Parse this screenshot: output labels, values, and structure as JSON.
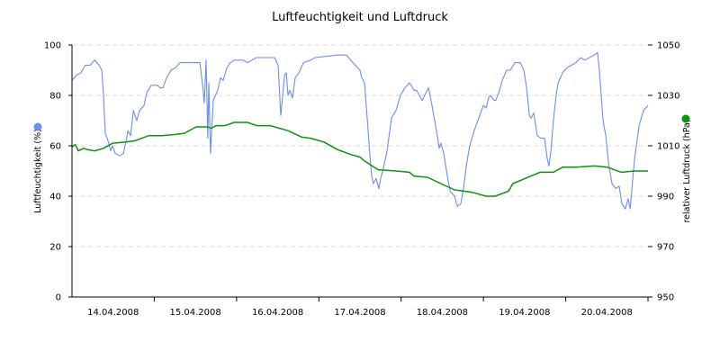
{
  "chart_data": {
    "type": "line",
    "title": "Luftfeuchtigkeit und Luftdruck",
    "x_unit": "hours since 14.04.2008 00:00",
    "xlim": [
      0,
      168
    ],
    "x_tick_labels": [
      "14.04.2008",
      "15.04.2008",
      "16.04.2008",
      "17.04.2008",
      "18.04.2008",
      "19.04.2008",
      "20.04.2008"
    ],
    "grid": true,
    "left_axis": {
      "label": "Luftfeuchtigkeit (%)",
      "ylim": [
        0,
        100
      ],
      "ticks": [
        "0",
        "20",
        "40",
        "60",
        "80",
        "100"
      ],
      "color": "#6b8ef0"
    },
    "right_axis": {
      "label": "relativer Luftdruck (hPa)",
      "ylim": [
        950,
        1050
      ],
      "ticks": [
        "950",
        "970",
        "990",
        "1010",
        "1030",
        "1050"
      ],
      "color": "#119011"
    },
    "series": [
      {
        "name": "Luftfeuchtigkeit (%)",
        "axis": "left",
        "color": "#6b8ef0",
        "x": [
          0,
          1.3,
          2.6,
          3.9,
          5.3,
          6.6,
          7.9,
          8.7,
          9.2,
          9.7,
          10.5,
          11.3,
          11.8,
          12.6,
          13.9,
          15.0,
          15.8,
          16.3,
          17.1,
          17.9,
          18.9,
          19.7,
          21.0,
          21.8,
          23.1,
          24.9,
          25.7,
          26.5,
          27.6,
          28.9,
          30.2,
          31.5,
          35.4,
          37.3,
          38.1,
          38.6,
          39.1,
          39.6,
          39.9,
          40.4,
          41.2,
          42.5,
          43.3,
          44.1,
          45.2,
          46.2,
          47.3,
          49.9,
          51.2,
          52.5,
          53.8,
          59.1,
          60.1,
          60.9,
          62.0,
          62.5,
          63.0,
          63.5,
          64.3,
          65.1,
          66.2,
          67.5,
          69.6,
          70.9,
          77.4,
          80.1,
          81.9,
          84.0,
          84.5,
          85.3,
          86.1,
          86.9,
          87.4,
          87.9,
          88.7,
          89.5,
          90.0,
          90.8,
          91.9,
          93.2,
          94.5,
          95.8,
          97.1,
          98.4,
          99.8,
          100.5,
          102.1,
          104.0,
          105.0,
          106.3,
          107.1,
          107.6,
          108.4,
          109.5,
          110.3,
          111.6,
          112.4,
          113.4,
          114.2,
          115.0,
          116.0,
          117.3,
          118.9,
          120.0,
          120.8,
          121.5,
          122.1,
          123.1,
          123.6,
          124.7,
          125.5,
          126.8,
          127.8,
          129.2,
          130.7,
          131.8,
          132.6,
          133.4,
          133.9,
          134.7,
          135.7,
          136.8,
          137.8,
          138.6,
          139.1,
          139.7,
          140.4,
          141.2,
          141.8,
          143.1,
          144.4,
          147.0,
          148.3,
          149.6,
          150.9,
          152.3,
          153.3,
          153.8,
          154.9,
          155.7,
          156.5,
          157.5,
          158.6,
          159.6,
          160.4,
          161.4,
          162.2,
          162.8,
          164.1,
          165.4,
          166.7,
          168.0
        ],
        "y": [
          86,
          88,
          89,
          92,
          92,
          94,
          92,
          90,
          80,
          65,
          62,
          58,
          60,
          57,
          56,
          57,
          62,
          66,
          64,
          74,
          70,
          74,
          76,
          81,
          84,
          84,
          83,
          83,
          87,
          90,
          91,
          93,
          93,
          93,
          84,
          77,
          94,
          63,
          85,
          57,
          78,
          82,
          87,
          86,
          91,
          93,
          94,
          94,
          93,
          94,
          95,
          95,
          92,
          72,
          88,
          89,
          80,
          82,
          79,
          87,
          89,
          93,
          94,
          95,
          96,
          96,
          93,
          90,
          87,
          85,
          71,
          56,
          48,
          45,
          47,
          43,
          47,
          51,
          58,
          71,
          74,
          80,
          83,
          85,
          82,
          82,
          78,
          83,
          76,
          66,
          59,
          61,
          57,
          48,
          42,
          40,
          36,
          37,
          43,
          52,
          60,
          66,
          72,
          76,
          75,
          79,
          80,
          78,
          78,
          82,
          86,
          90,
          90,
          93,
          93,
          90,
          83,
          72,
          71,
          73,
          64,
          63,
          63,
          55,
          52,
          58,
          70,
          80,
          85,
          89,
          91,
          93,
          95,
          94,
          95,
          96,
          97,
          90,
          70,
          64,
          53,
          45,
          43,
          44,
          37,
          35,
          39,
          35,
          55,
          68,
          74,
          76
        ]
      },
      {
        "name": "relativer Luftdruck (hPa)",
        "axis": "right",
        "color": "#119011",
        "x": [
          0,
          1.0,
          1.8,
          3.4,
          4.5,
          6.6,
          9.2,
          11.8,
          15.8,
          18.4,
          22.3,
          26.3,
          30.2,
          32.8,
          36.2,
          39.4,
          40.7,
          42.0,
          44.6,
          47.3,
          51.2,
          53.8,
          57.8,
          63.0,
          66.9,
          69.6,
          73.5,
          77.4,
          81.4,
          84.0,
          85.3,
          89.3,
          94.5,
          98.4,
          99.8,
          103.7,
          107.6,
          111.6,
          116.8,
          120.8,
          123.4,
          127.3,
          128.6,
          133.9,
          136.5,
          140.4,
          143.1,
          147.0,
          152.3,
          156.2,
          160.2,
          164.1,
          168.0
        ],
        "y": [
          1009.6,
          1010.5,
          1008,
          1009,
          1008.5,
          1008,
          1009,
          1011,
          1011.5,
          1012,
          1014,
          1014,
          1014.5,
          1015,
          1017.5,
          1017.5,
          1017,
          1018,
          1018,
          1019.3,
          1019.3,
          1018,
          1018,
          1016,
          1013.5,
          1013,
          1011.5,
          1008.5,
          1006.5,
          1005.5,
          1004,
          1000.5,
          1000,
          999.5,
          998,
          997.5,
          995,
          992.5,
          991.5,
          990,
          990,
          992,
          995,
          998,
          999.5,
          999.5,
          1001.5,
          1001.5,
          1002,
          1001.5,
          999.5,
          1000,
          1000
        ]
      }
    ]
  }
}
